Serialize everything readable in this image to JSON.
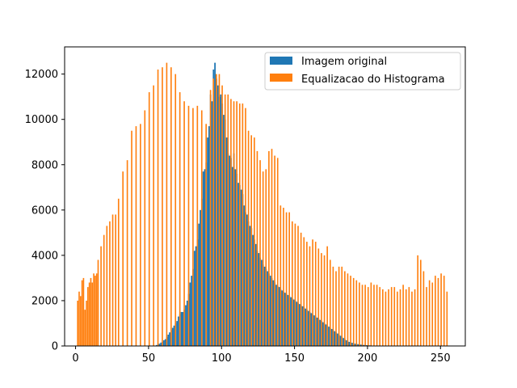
{
  "chart_data": {
    "type": "bar",
    "title": "",
    "xlabel": "",
    "ylabel": "",
    "xlim": [
      -7.5,
      267
    ],
    "ylim": [
      0,
      13200
    ],
    "xticks": [
      0,
      50,
      100,
      150,
      200,
      250
    ],
    "yticks": [
      0,
      2000,
      4000,
      6000,
      8000,
      10000,
      12000
    ],
    "legend_position": "top-right",
    "series": [
      {
        "name": "Imagem original",
        "color": "#1f77b4",
        "x": [
          55,
          56,
          57,
          58,
          59,
          60,
          61,
          62,
          63,
          64,
          65,
          66,
          67,
          68,
          69,
          70,
          71,
          72,
          73,
          74,
          75,
          76,
          77,
          78,
          79,
          80,
          81,
          82,
          83,
          84,
          85,
          86,
          87,
          88,
          89,
          90,
          91,
          92,
          93,
          94,
          95,
          96,
          97,
          98,
          99,
          100,
          101,
          102,
          103,
          104,
          105,
          106,
          107,
          108,
          109,
          110,
          111,
          112,
          113,
          114,
          115,
          116,
          117,
          118,
          119,
          120,
          121,
          122,
          123,
          124,
          125,
          126,
          127,
          128,
          129,
          130,
          131,
          132,
          133,
          134,
          135,
          136,
          137,
          138,
          139,
          140,
          141,
          142,
          143,
          144,
          145,
          146,
          147,
          148,
          149,
          150,
          151,
          152,
          153,
          154,
          155,
          156,
          157,
          158,
          159,
          160,
          161,
          162,
          163,
          164,
          165,
          166,
          167,
          168,
          169,
          170,
          171,
          172,
          173,
          174,
          175,
          176,
          177,
          178,
          179,
          180,
          181,
          182,
          183,
          184,
          185,
          186,
          187,
          188,
          189,
          190,
          191,
          192,
          193,
          194,
          195,
          196,
          197,
          198,
          199,
          200,
          201,
          202,
          203,
          204,
          205,
          206,
          207,
          208,
          209,
          210
        ],
        "values": [
          40,
          80,
          100,
          150,
          180,
          250,
          300,
          400,
          500,
          600,
          700,
          800,
          900,
          1000,
          1100,
          1300,
          1400,
          1500,
          1500,
          1600,
          1800,
          2000,
          2300,
          2800,
          3100,
          3400,
          4200,
          4400,
          4700,
          5400,
          6000,
          6500,
          7700,
          7800,
          8100,
          9200,
          9700,
          11100,
          10800,
          12200,
          12500,
          11800,
          11500,
          11000,
          11100,
          10700,
          10200,
          10000,
          9200,
          8500,
          8400,
          8300,
          7900,
          8500,
          7800,
          7600,
          7200,
          7100,
          6900,
          6700,
          6200,
          5900,
          5800,
          5500,
          5300,
          5200,
          4900,
          4700,
          4500,
          4200,
          4100,
          3900,
          3800,
          3600,
          3500,
          3400,
          3300,
          3200,
          3100,
          3000,
          2900,
          2800,
          2700,
          2650,
          2600,
          2500,
          2450,
          2400,
          2350,
          2300,
          2250,
          2200,
          2150,
          2100,
          2050,
          2000,
          1950,
          1900,
          1850,
          1800,
          1750,
          1700,
          1650,
          1600,
          1550,
          1500,
          1450,
          1400,
          1350,
          1300,
          1250,
          1200,
          1150,
          1100,
          1050,
          1000,
          950,
          900,
          850,
          800,
          750,
          700,
          650,
          600,
          550,
          500,
          450,
          400,
          350,
          300,
          250,
          200,
          180,
          160,
          140,
          120,
          100,
          90,
          80,
          70,
          60,
          50,
          45,
          40,
          35,
          30,
          25,
          20,
          18,
          16,
          14,
          12,
          10,
          8,
          6,
          5
        ]
      },
      {
        "name": "Equalizacao do Histograma",
        "color": "#ff7f0e",
        "x": [
          1,
          2,
          3,
          4,
          5,
          6,
          7,
          8,
          9,
          10,
          11,
          12,
          13,
          14,
          15,
          17,
          19,
          21,
          23,
          25,
          27,
          29,
          32,
          35,
          38,
          41,
          44,
          47,
          50,
          53,
          56,
          59,
          62,
          65,
          68,
          71,
          74,
          77,
          80,
          83,
          86,
          89,
          92,
          94,
          96,
          98,
          100,
          102,
          104,
          106,
          108,
          110,
          112,
          114,
          116,
          118,
          120,
          122,
          124,
          126,
          128,
          130,
          132,
          134,
          136,
          138,
          140,
          142,
          144,
          146,
          148,
          150,
          152,
          154,
          156,
          158,
          160,
          162,
          164,
          166,
          168,
          170,
          172,
          174,
          176,
          178,
          180,
          182,
          184,
          186,
          188,
          190,
          192,
          194,
          196,
          198,
          200,
          202,
          204,
          206,
          208,
          210,
          212,
          214,
          216,
          218,
          220,
          222,
          224,
          226,
          228,
          230,
          232,
          234,
          236,
          238,
          240,
          242,
          244,
          246,
          248,
          250,
          252,
          254
        ],
        "values": [
          2000,
          2400,
          2200,
          2900,
          3000,
          1600,
          2000,
          2600,
          2800,
          3000,
          2800,
          3200,
          3100,
          3200,
          3800,
          4400,
          4900,
          5300,
          5500,
          5800,
          5800,
          6500,
          7700,
          8200,
          9500,
          9700,
          9800,
          10400,
          11200,
          11500,
          12200,
          12300,
          12500,
          12300,
          12000,
          11200,
          10800,
          10600,
          10500,
          10600,
          10400,
          9800,
          11300,
          11800,
          12000,
          12000,
          11500,
          11100,
          11100,
          10900,
          10800,
          10800,
          10700,
          10700,
          10500,
          9500,
          9300,
          9200,
          8600,
          8200,
          7700,
          7800,
          8600,
          8700,
          8400,
          8300,
          6200,
          6100,
          5900,
          5900,
          5500,
          5400,
          5300,
          5000,
          4800,
          4600,
          4400,
          4700,
          4600,
          4300,
          4100,
          4000,
          4400,
          3800,
          3500,
          3300,
          3500,
          3500,
          3300,
          3200,
          3100,
          3000,
          2900,
          2800,
          2700,
          2700,
          2600,
          2800,
          2700,
          2700,
          2600,
          2500,
          2400,
          2500,
          2600,
          2600,
          2400,
          2500,
          2700,
          2500,
          2600,
          2400,
          2500,
          4000,
          3800,
          3300,
          2600,
          2900,
          2800,
          3100,
          3000,
          3200,
          3100,
          2400
        ],
        "values_note_removed": null
      }
    ]
  }
}
